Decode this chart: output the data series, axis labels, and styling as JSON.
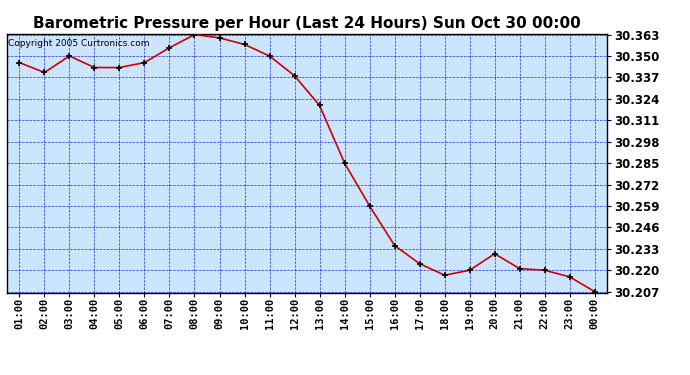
{
  "title": "Barometric Pressure per Hour (Last 24 Hours) Sun Oct 30 00:00",
  "copyright": "Copyright 2005 Curtronics.com",
  "x_labels": [
    "01:00",
    "02:00",
    "03:00",
    "04:00",
    "05:00",
    "06:00",
    "07:00",
    "08:00",
    "09:00",
    "10:00",
    "11:00",
    "12:00",
    "13:00",
    "14:00",
    "15:00",
    "16:00",
    "17:00",
    "18:00",
    "19:00",
    "20:00",
    "21:00",
    "22:00",
    "23:00",
    "00:00"
  ],
  "y_values": [
    30.346,
    30.34,
    30.35,
    30.343,
    30.343,
    30.346,
    30.355,
    30.363,
    30.361,
    30.357,
    30.35,
    30.338,
    30.32,
    30.285,
    30.259,
    30.235,
    30.224,
    30.217,
    30.22,
    30.23,
    30.221,
    30.22,
    30.216,
    30.207
  ],
  "y_min": 30.207,
  "y_max": 30.363,
  "y_ticks": [
    30.207,
    30.22,
    30.233,
    30.246,
    30.259,
    30.272,
    30.285,
    30.298,
    30.311,
    30.324,
    30.337,
    30.35,
    30.363
  ],
  "line_color": "#cc0000",
  "marker_color": "#000000",
  "background_color": "#cce5ff",
  "grid_color": "#0000cc",
  "title_fontsize": 11,
  "copyright_fontsize": 6.5,
  "tick_fontsize": 7.5,
  "ytick_fontsize": 8.5,
  "outer_bg": "#ffffff"
}
